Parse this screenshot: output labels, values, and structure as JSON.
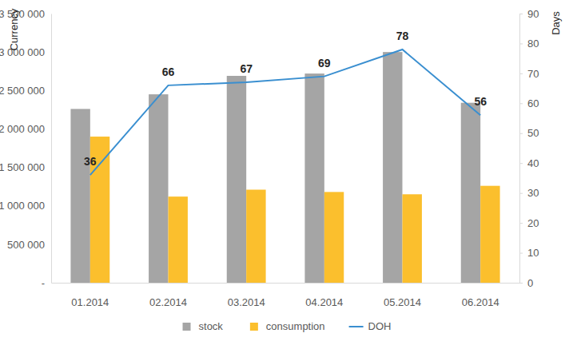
{
  "chart_data": {
    "type": "bar",
    "y_label": "Currency",
    "y2_label": "Days",
    "categories": [
      "01.2014",
      "02.2014",
      "03.2014",
      "04.2014",
      "05.2014",
      "06.2014"
    ],
    "series": [
      {
        "name": "stock",
        "type": "bar",
        "color": "#a5a5a5",
        "values": [
          2260000,
          2450000,
          2690000,
          2720000,
          3000000,
          2340000
        ]
      },
      {
        "name": "consumption",
        "type": "bar",
        "color": "#fbbf2d",
        "values": [
          1900000,
          1120000,
          1210000,
          1180000,
          1150000,
          1260000
        ]
      },
      {
        "name": "DOH",
        "type": "line",
        "axis": "y2",
        "color": "#3a8fd0",
        "data_labels": true,
        "values": [
          36,
          66,
          67,
          69,
          78,
          56
        ]
      }
    ],
    "ylim": [
      0,
      3500000
    ],
    "yticks": [
      {
        "value": 0,
        "label": "-"
      },
      {
        "value": 500000,
        "label": "500 000"
      },
      {
        "value": 1000000,
        "label": "1 000 000"
      },
      {
        "value": 1500000,
        "label": "1 500 000"
      },
      {
        "value": 2000000,
        "label": "2 000 000"
      },
      {
        "value": 2500000,
        "label": "2 500 000"
      },
      {
        "value": 3000000,
        "label": "3 000 000"
      },
      {
        "value": 3500000,
        "label": "3 500 000"
      }
    ],
    "y2lim": [
      0,
      90
    ],
    "y2ticks": [
      0,
      10,
      20,
      30,
      40,
      50,
      60,
      70,
      80,
      90
    ],
    "grid": false,
    "legend": "bottom"
  }
}
